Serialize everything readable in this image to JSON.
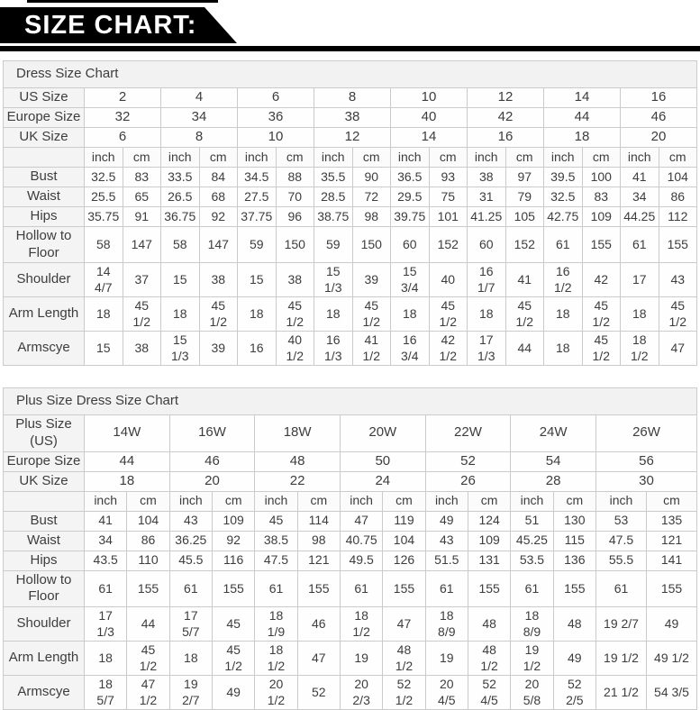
{
  "banner": {
    "title": "SIZE CHART:"
  },
  "colors": {
    "banner_bg": "#000000",
    "table_border": "#cbcbcb",
    "header_bg": "#f2f2f2",
    "label_bg": "#f4f4f4",
    "text": "#3d3d3d"
  },
  "tables": [
    {
      "title": "Dress Size Chart",
      "size_rows": [
        {
          "label": "US Size",
          "values": [
            "2",
            "4",
            "6",
            "8",
            "10",
            "12",
            "14",
            "16"
          ]
        },
        {
          "label": "Europe Size",
          "values": [
            "32",
            "34",
            "36",
            "38",
            "40",
            "42",
            "44",
            "46"
          ]
        },
        {
          "label": "UK Size",
          "values": [
            "6",
            "8",
            "10",
            "12",
            "14",
            "16",
            "18",
            "20"
          ]
        }
      ],
      "units": [
        "inch",
        "cm"
      ],
      "measure_rows": [
        {
          "label": "Bust",
          "values": [
            "32.5",
            "83",
            "33.5",
            "84",
            "34.5",
            "88",
            "35.5",
            "90",
            "36.5",
            "93",
            "38",
            "97",
            "39.5",
            "100",
            "41",
            "104"
          ]
        },
        {
          "label": "Waist",
          "values": [
            "25.5",
            "65",
            "26.5",
            "68",
            "27.5",
            "70",
            "28.5",
            "72",
            "29.5",
            "75",
            "31",
            "79",
            "32.5",
            "83",
            "34",
            "86"
          ]
        },
        {
          "label": "Hips",
          "values": [
            "35.75",
            "91",
            "36.75",
            "92",
            "37.75",
            "96",
            "38.75",
            "98",
            "39.75",
            "101",
            "41.25",
            "105",
            "42.75",
            "109",
            "44.25",
            "112"
          ]
        },
        {
          "label": "Hollow to Floor",
          "values": [
            "58",
            "147",
            "58",
            "147",
            "59",
            "150",
            "59",
            "150",
            "60",
            "152",
            "60",
            "152",
            "61",
            "155",
            "61",
            "155"
          ]
        },
        {
          "label": "Shoulder",
          "values": [
            "14\n4/7",
            "37",
            "15",
            "38",
            "15",
            "38",
            "15\n1/3",
            "39",
            "15\n3/4",
            "40",
            "16\n1/7",
            "41",
            "16\n1/2",
            "42",
            "17",
            "43"
          ]
        },
        {
          "label": "Arm Length",
          "values": [
            "18",
            "45\n1/2",
            "18",
            "45\n1/2",
            "18",
            "45\n1/2",
            "18",
            "45\n1/2",
            "18",
            "45\n1/2",
            "18",
            "45\n1/2",
            "18",
            "45\n1/2",
            "18",
            "45\n1/2"
          ]
        },
        {
          "label": "Armscye",
          "values": [
            "15",
            "38",
            "15\n1/3",
            "39",
            "16",
            "40\n1/2",
            "16\n1/3",
            "41\n1/2",
            "16\n3/4",
            "42\n1/2",
            "17\n1/3",
            "44",
            "18",
            "45\n1/2",
            "18\n1/2",
            "47"
          ]
        }
      ]
    },
    {
      "title": "Plus Size Dress Size Chart",
      "size_rows": [
        {
          "label": "Plus Size (US)",
          "values": [
            "14W",
            "16W",
            "18W",
            "20W",
            "22W",
            "24W",
            "26W"
          ]
        },
        {
          "label": "Europe Size",
          "values": [
            "44",
            "46",
            "48",
            "50",
            "52",
            "54",
            "56"
          ]
        },
        {
          "label": "UK Size",
          "values": [
            "18",
            "20",
            "22",
            "24",
            "26",
            "28",
            "30"
          ]
        }
      ],
      "units": [
        "inch",
        "cm"
      ],
      "measure_rows": [
        {
          "label": "Bust",
          "values": [
            "41",
            "104",
            "43",
            "109",
            "45",
            "114",
            "47",
            "119",
            "49",
            "124",
            "51",
            "130",
            "53",
            "135"
          ]
        },
        {
          "label": "Waist",
          "values": [
            "34",
            "86",
            "36.25",
            "92",
            "38.5",
            "98",
            "40.75",
            "104",
            "43",
            "109",
            "45.25",
            "115",
            "47.5",
            "121"
          ]
        },
        {
          "label": "Hips",
          "values": [
            "43.5",
            "110",
            "45.5",
            "116",
            "47.5",
            "121",
            "49.5",
            "126",
            "51.5",
            "131",
            "53.5",
            "136",
            "55.5",
            "141"
          ]
        },
        {
          "label": "Hollow to Floor",
          "values": [
            "61",
            "155",
            "61",
            "155",
            "61",
            "155",
            "61",
            "155",
            "61",
            "155",
            "61",
            "155",
            "61",
            "155"
          ]
        },
        {
          "label": "Shoulder",
          "values": [
            "17\n1/3",
            "44",
            "17\n5/7",
            "45",
            "18\n1/9",
            "46",
            "18\n1/2",
            "47",
            "18\n8/9",
            "48",
            "18\n8/9",
            "48",
            "19 2/7",
            "49"
          ]
        },
        {
          "label": "Arm Length",
          "values": [
            "18",
            "45\n1/2",
            "18",
            "45\n1/2",
            "18\n1/2",
            "47",
            "19",
            "48\n1/2",
            "19",
            "48\n1/2",
            "19\n1/2",
            "49",
            "19 1/2",
            "49 1/2"
          ]
        },
        {
          "label": "Armscye",
          "values": [
            "18\n5/7",
            "47\n1/2",
            "19\n2/7",
            "49",
            "20\n1/2",
            "52",
            "20\n2/3",
            "52\n1/2",
            "20\n4/5",
            "52\n4/5",
            "20\n5/8",
            "52\n2/5",
            "21 1/2",
            "54 3/5"
          ]
        }
      ]
    }
  ]
}
